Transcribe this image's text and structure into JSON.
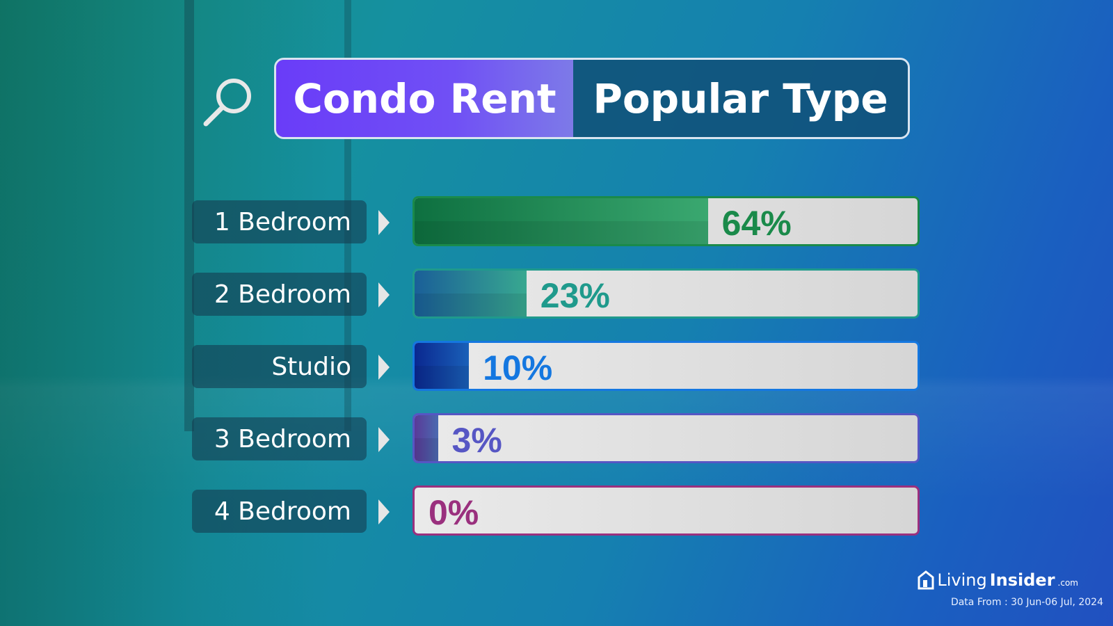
{
  "header": {
    "title_left": "Condo Rent",
    "title_right": "Popular Type"
  },
  "chart_data": {
    "type": "bar",
    "orientation": "horizontal",
    "categories": [
      "1 Bedroom",
      "2 Bedroom",
      "Studio",
      "3 Bedroom",
      "4 Bedroom"
    ],
    "values": [
      64,
      23,
      10,
      3,
      0
    ],
    "value_labels": [
      "64%",
      "23%",
      "10%",
      "3%",
      "0%"
    ],
    "colors": [
      "#1a8a4a",
      "#1f9a8c",
      "#1477e0",
      "#5656c4",
      "#9a307e"
    ],
    "fill_colors": [
      [
        "#0e7040",
        "#3aa870"
      ],
      [
        "#1a5f98",
        "#38a890"
      ],
      [
        "#0a2890",
        "#1a60b8"
      ],
      [
        "#5a3a98",
        "#4a6ab0"
      ],
      [
        "#a03080",
        "#a03080"
      ]
    ],
    "xlim": [
      0,
      100
    ]
  },
  "footer": {
    "brand_light": "Living",
    "brand_bold": "Insider",
    "brand_suffix": ".com",
    "data_from": "Data From : 30 Jun-06 Jul, 2024"
  }
}
